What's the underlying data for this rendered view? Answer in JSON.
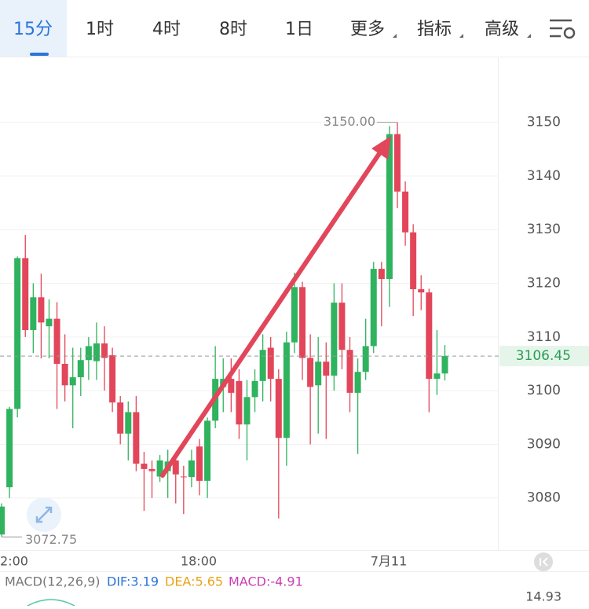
{
  "tabs": [
    "15分",
    "1时",
    "4时",
    "8时",
    "1日",
    "更多",
    "指标",
    "高级"
  ],
  "chart_data": {
    "type": "candlestick",
    "up_color": "#2fb35e",
    "down_color": "#e2465a",
    "open": [
      3073.2,
      3082,
      3096.6,
      3124.7,
      3111.3,
      3117.4,
      3112,
      3113.4,
      3105,
      3101,
      3102.5,
      3105.7,
      3105.5,
      3108.8,
      3106.6,
      3097.8,
      3092,
      3096,
      3086.4,
      3085.4,
      3084,
      3085,
      3087,
      3084,
      3083.9,
      3089.6,
      3083.2,
      3094.4,
      3100.7,
      3102.2,
      3101.8,
      3093.7,
      3098.8,
      3101.8,
      3108,
      3102.2,
      3091.2,
      3109,
      3119.3,
      3106.1,
      3101,
      3105.4,
      3102.8,
      3116.4,
      3107.6,
      3099.6,
      3103.5,
      3108.3,
      3122.7,
      3120.8,
      3147.8,
      3137.1,
      3129.5,
      3118.9,
      3118.3,
      3102.2,
      3103.2
    ],
    "high": [
      3079,
      3097,
      3125,
      3129,
      3120,
      3121.8,
      3117,
      3116.5,
      3110.5,
      3108,
      3108,
      3110,
      3112.7,
      3112,
      3108,
      3099,
      3098,
      3099,
      3088.6,
      3087,
      3088,
      3089,
      3088,
      3086,
      3089,
      3091,
      3095,
      3108.3,
      3106,
      3106,
      3104,
      3102,
      3104,
      3110.5,
      3110,
      3104,
      3111,
      3122,
      3120.3,
      3110.5,
      3110,
      3109,
      3120,
      3120,
      3110,
      3106,
      3113.4,
      3124,
      3124,
      3149.3,
      3150,
      3139,
      3131,
      3121.5,
      3119,
      3111.3,
      3108.5
    ],
    "low": [
      3072.75,
      3080,
      3095,
      3110,
      3107,
      3106,
      3106,
      3096.6,
      3098,
      3093,
      3099,
      3102,
      3102,
      3100,
      3096,
      3090,
      3087,
      3085,
      3077.6,
      3080,
      3083,
      3080,
      3079,
      3077,
      3082,
      3080.5,
      3080,
      3093,
      3096,
      3096,
      3091,
      3087,
      3096,
      3098,
      3098,
      3076.2,
      3086,
      3107,
      3102,
      3090,
      3092,
      3091,
      3100,
      3104,
      3096,
      3088.2,
      3102,
      3107,
      3112,
      3115.6,
      3134,
      3127,
      3113.9,
      3115,
      3096,
      3099.2,
      3101.9
    ],
    "close": [
      3078.4,
      3096.6,
      3124.7,
      3111.3,
      3117.4,
      3112.7,
      3113.4,
      3105,
      3101,
      3102.5,
      3105.7,
      3108.3,
      3108.8,
      3106.1,
      3097.8,
      3092,
      3096,
      3086.4,
      3085.4,
      3085,
      3087,
      3086.8,
      3084.4,
      3083.9,
      3087,
      3083.2,
      3094.4,
      3102.2,
      3102.2,
      3099.6,
      3093.7,
      3098.8,
      3101.8,
      3107.6,
      3102.2,
      3091.2,
      3109,
      3119.3,
      3106.1,
      3100.7,
      3105.4,
      3102.8,
      3116.4,
      3107.6,
      3099.6,
      3103.5,
      3108.3,
      3122.7,
      3120.8,
      3147.8,
      3137.1,
      3129.5,
      3118.9,
      3118.3,
      3102.2,
      3103.2,
      3106.45
    ],
    "ylim": [
      3070.3,
      3162.1
    ],
    "yticks": [
      3080,
      3090,
      3100,
      3110,
      3120,
      3130,
      3140,
      3150
    ],
    "xtick_labels": [
      "2:00",
      "18:00",
      "7月11"
    ],
    "last_price": {
      "value": 3106.45,
      "label": "3106.45"
    },
    "max_label": {
      "value": 3150,
      "label": "3150.00"
    },
    "min_label": {
      "value": 3072.75,
      "label": "3072.75"
    },
    "macd": {
      "title": "MACD(12,26,9)",
      "dif": "DIF:3.19",
      "dea": "DEA:5.65",
      "macd": "MACD:-4.91",
      "axis_label": "14.93"
    }
  }
}
